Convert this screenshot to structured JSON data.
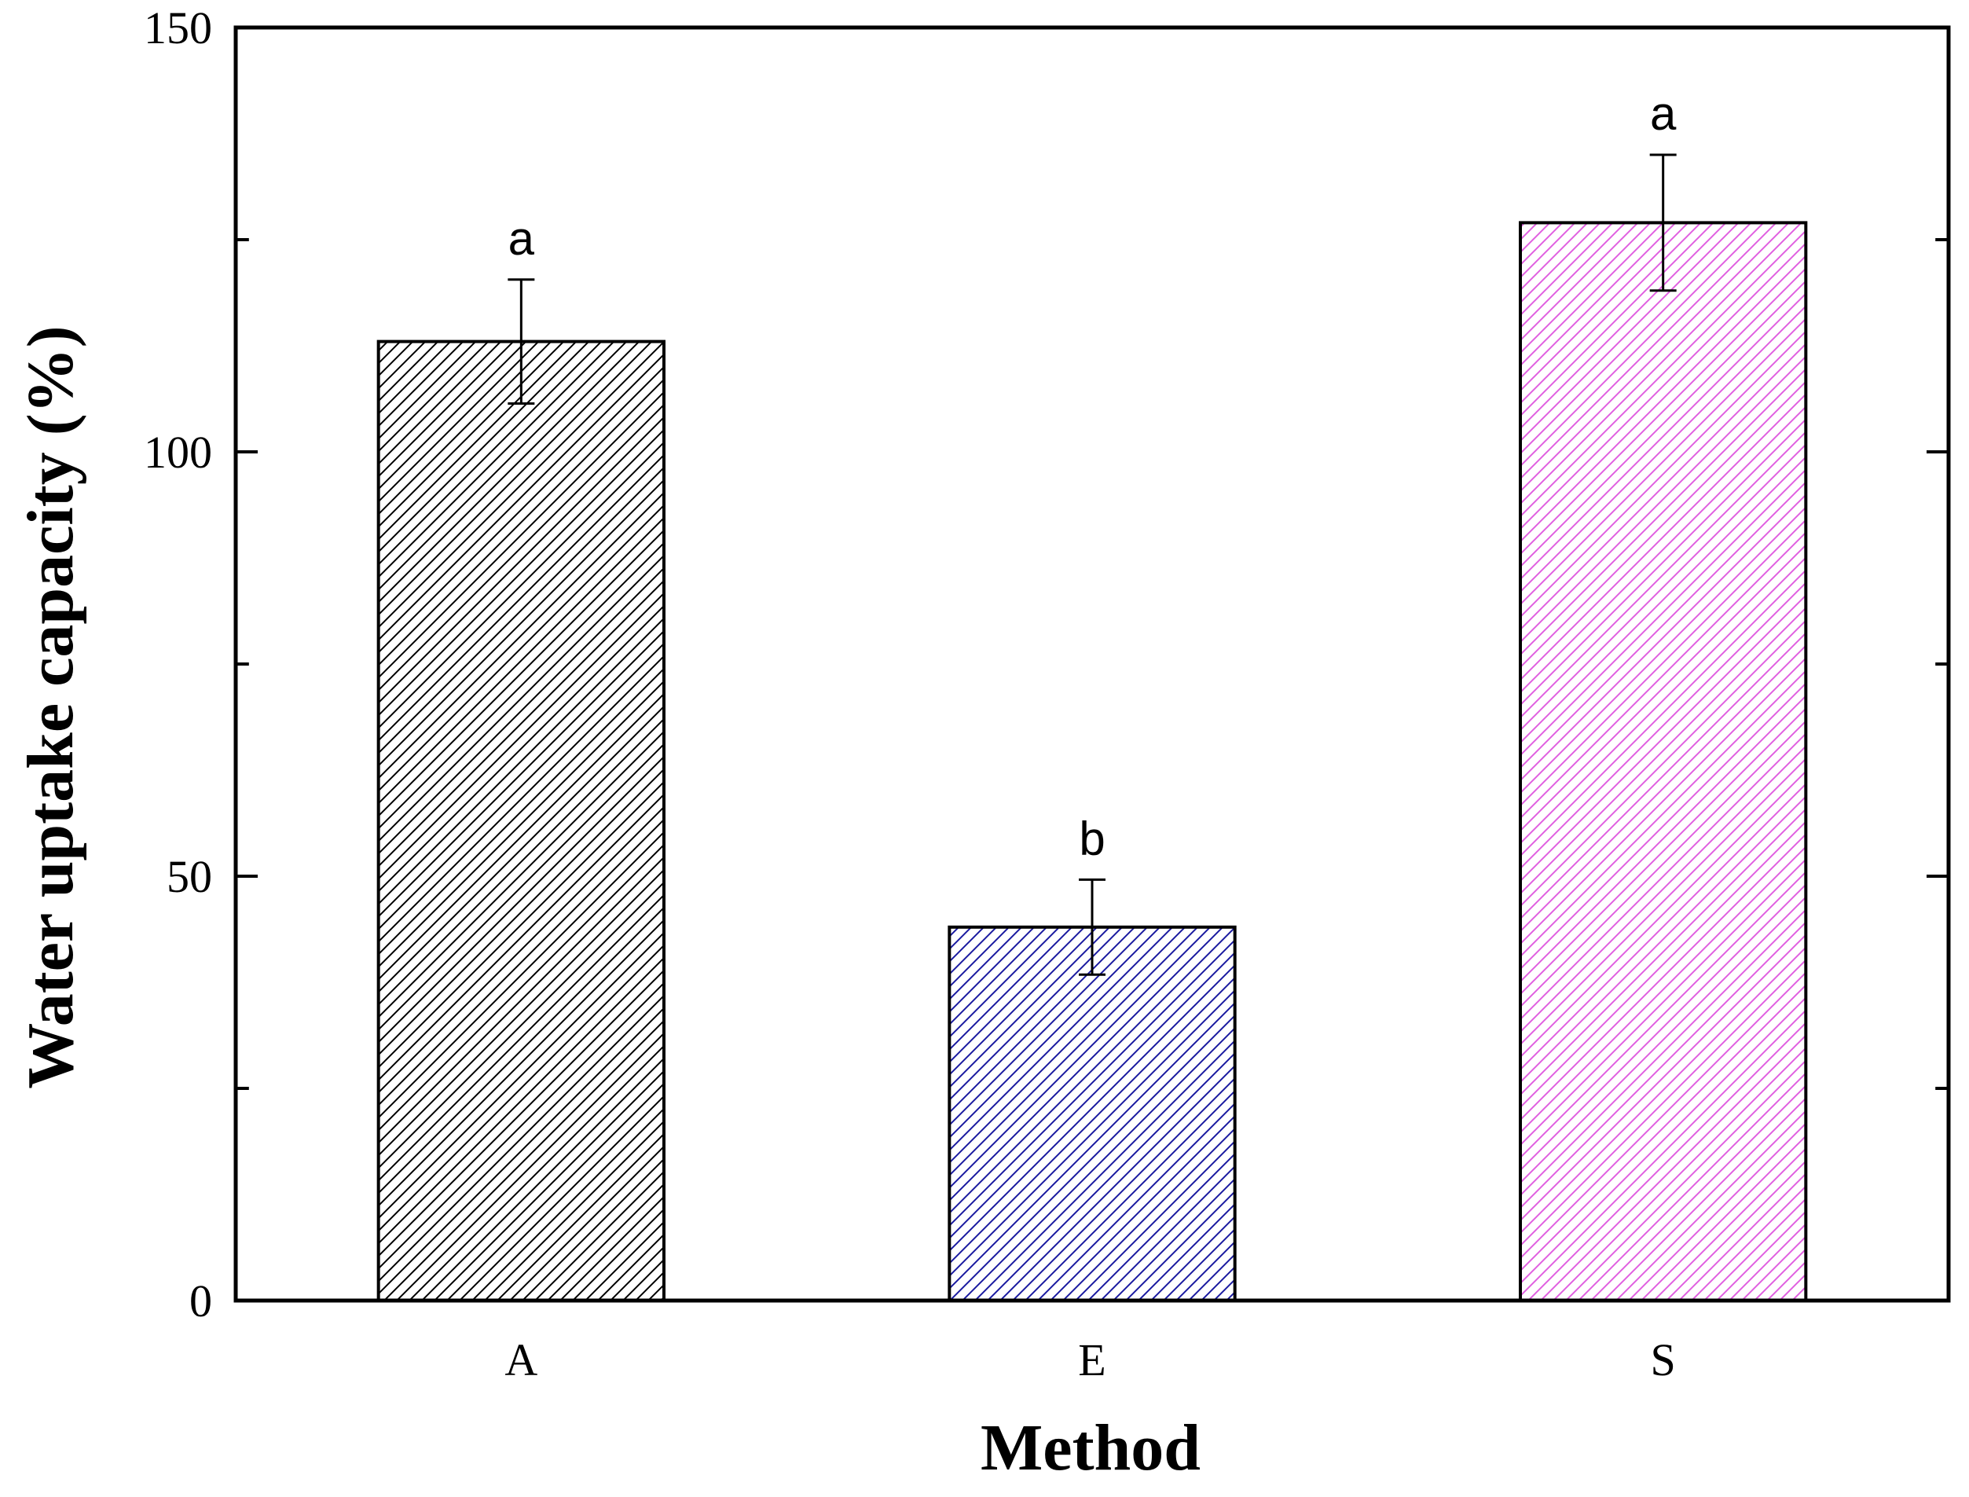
{
  "chart_data": {
    "type": "bar",
    "categories": [
      "A",
      "E",
      "S"
    ],
    "values": [
      113,
      44,
      127
    ],
    "errors": [
      7.3,
      5.6,
      8.0
    ],
    "significance_labels": [
      "a",
      "b",
      "a"
    ],
    "bar_colors": [
      "#000000",
      "#1a1aa0",
      "#e060e0"
    ],
    "bar_pattern": "diagonal-hatch",
    "xlabel": "Method",
    "ylabel": "Water uptake capacity (%)",
    "ylim": [
      0,
      150
    ],
    "yticks_major": [
      0,
      50,
      100,
      150
    ],
    "yticks_minor": [
      25,
      75,
      125
    ],
    "grid": false,
    "legend": false
  }
}
